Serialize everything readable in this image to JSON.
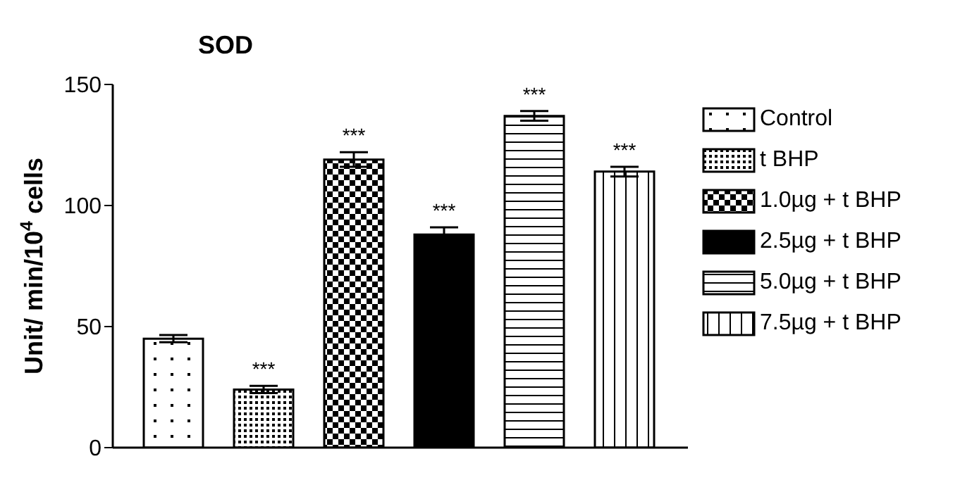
{
  "chart_data": {
    "type": "bar",
    "title": "SOD",
    "ylabel": "Unit/ min/10$^{4}$ cells",
    "categories": [
      null
    ],
    "series": [
      {
        "name": "Control",
        "color": "#000000",
        "values": [
          45
        ],
        "errors": [
          1.5
        ]
      },
      {
        "name": "t BHP",
        "color": "#000000",
        "values": [
          24
        ],
        "errors": [
          1.5
        ],
        "value_labels": [
          "***"
        ]
      },
      {
        "name": "1.0µg + t BHP",
        "color": "#000000",
        "values": [
          119
        ],
        "errors": [
          3
        ],
        "value_labels": [
          "***"
        ]
      },
      {
        "name": "2.5µg + t BHP",
        "color": "#000000",
        "values": [
          88
        ],
        "errors": [
          3
        ],
        "value_labels": [
          "***"
        ]
      },
      {
        "name": "5.0µg + t BHP",
        "color": "#000000",
        "values": [
          137
        ],
        "errors": [
          2
        ],
        "value_labels": [
          "***"
        ]
      },
      {
        "name": "7.5µg + t BHP",
        "color": "#000000",
        "values": [
          114
        ],
        "errors": [
          2
        ],
        "value_labels": [
          "***"
        ]
      }
    ],
    "ylim": [
      0,
      150
    ],
    "yticks": [
      0,
      50,
      100,
      150
    ],
    "grid": false,
    "legend": "right",
    "tick_labels": "y"
  }
}
